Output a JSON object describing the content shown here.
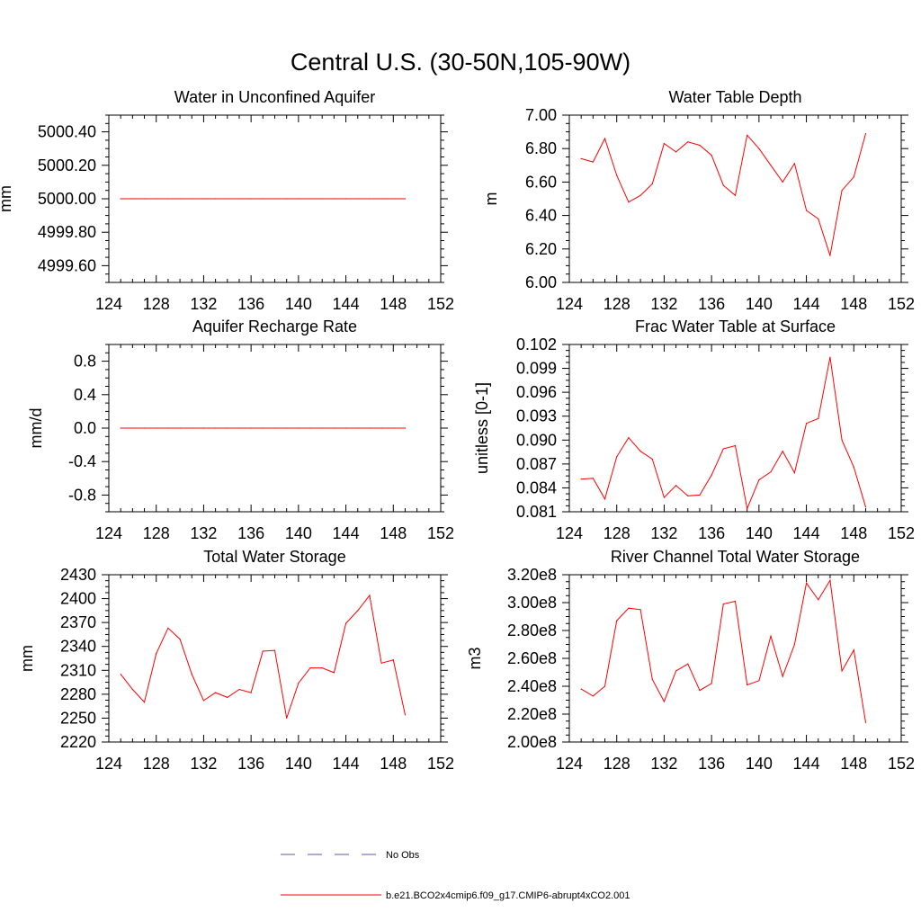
{
  "title": "Central U.S. (30-50N,105-90W)",
  "legend": {
    "entries": [
      {
        "label": "No Obs",
        "color": "#5a5aa8",
        "style": "dashed"
      },
      {
        "label": "b.e21.BCO2x4cmip6.f09_g17.CMIP6-abrupt4xCO2.001",
        "color": "#ff0000",
        "style": "solid"
      }
    ]
  },
  "chart_data": [
    {
      "type": "line",
      "title": "Water in Unconfined Aquifer",
      "xlabel": "",
      "ylabel": "mm",
      "xlim": [
        124,
        152
      ],
      "ylim": [
        4999.5,
        5000.5
      ],
      "xticks": [
        124,
        128,
        132,
        136,
        140,
        144,
        148,
        152
      ],
      "xtick_labels": [
        "124",
        "128",
        "132",
        "136",
        "140",
        "144",
        "148",
        "152"
      ],
      "yticks": [
        4999.6,
        4999.8,
        5000.0,
        5000.2,
        5000.4
      ],
      "ytick_labels": [
        "4999.60",
        "4999.80",
        "5000.00",
        "5000.20",
        "5000.40"
      ],
      "x": [
        125,
        126,
        127,
        128,
        129,
        130,
        131,
        132,
        133,
        134,
        135,
        136,
        137,
        138,
        139,
        140,
        141,
        142,
        143,
        144,
        145,
        146,
        147,
        148,
        149
      ],
      "series": [
        {
          "name": "b.e21.BCO2x4cmip6.f09_g17.CMIP6-abrupt4xCO2.001",
          "color": "#ff0000",
          "values": [
            5000,
            5000,
            5000,
            5000,
            5000,
            5000,
            5000,
            5000,
            5000,
            5000,
            5000,
            5000,
            5000,
            5000,
            5000,
            5000,
            5000,
            5000,
            5000,
            5000,
            5000,
            5000,
            5000,
            5000,
            5000
          ]
        }
      ]
    },
    {
      "type": "line",
      "title": "Water Table Depth",
      "xlabel": "",
      "ylabel": "m",
      "xlim": [
        124,
        152
      ],
      "ylim": [
        6.0,
        7.0
      ],
      "xticks": [
        124,
        128,
        132,
        136,
        140,
        144,
        148,
        152
      ],
      "xtick_labels": [
        "124",
        "128",
        "132",
        "136",
        "140",
        "144",
        "148",
        "152"
      ],
      "yticks": [
        6.0,
        6.2,
        6.4,
        6.6,
        6.8,
        7.0
      ],
      "ytick_labels": [
        "6.00",
        "6.20",
        "6.40",
        "6.60",
        "6.80",
        "7.00"
      ],
      "x": [
        125,
        126,
        127,
        128,
        129,
        130,
        131,
        132,
        133,
        134,
        135,
        136,
        137,
        138,
        139,
        140,
        141,
        142,
        143,
        144,
        145,
        146,
        147,
        148,
        149
      ],
      "series": [
        {
          "name": "b.e21.BCO2x4cmip6.f09_g17.CMIP6-abrupt4xCO2.001",
          "color": "#ff0000",
          "values": [
            6.74,
            6.72,
            6.86,
            6.64,
            6.48,
            6.52,
            6.59,
            6.83,
            6.78,
            6.84,
            6.82,
            6.76,
            6.58,
            6.52,
            6.88,
            6.8,
            6.7,
            6.6,
            6.71,
            6.43,
            6.38,
            6.16,
            6.55,
            6.63,
            6.89
          ]
        }
      ]
    },
    {
      "type": "line",
      "title": "Aquifer Recharge Rate",
      "xlabel": "",
      "ylabel": "mm/d",
      "xlim": [
        124,
        152
      ],
      "ylim": [
        -1.0,
        1.0
      ],
      "xticks": [
        124,
        128,
        132,
        136,
        140,
        144,
        148,
        152
      ],
      "xtick_labels": [
        "124",
        "128",
        "132",
        "136",
        "140",
        "144",
        "148",
        "152"
      ],
      "yticks": [
        -0.8,
        -0.4,
        0.0,
        0.4,
        0.8
      ],
      "ytick_labels": [
        "-0.8",
        "-0.4",
        "0.0",
        "0.4",
        "0.8"
      ],
      "x": [
        125,
        126,
        127,
        128,
        129,
        130,
        131,
        132,
        133,
        134,
        135,
        136,
        137,
        138,
        139,
        140,
        141,
        142,
        143,
        144,
        145,
        146,
        147,
        148,
        149
      ],
      "series": [
        {
          "name": "b.e21.BCO2x4cmip6.f09_g17.CMIP6-abrupt4xCO2.001",
          "color": "#ff0000",
          "values": [
            0,
            0,
            0,
            0,
            0,
            0,
            0,
            0,
            0,
            0,
            0,
            0,
            0,
            0,
            0,
            0,
            0,
            0,
            0,
            0,
            0,
            0,
            0,
            0,
            0
          ]
        }
      ]
    },
    {
      "type": "line",
      "title": "Frac Water Table at Surface",
      "xlabel": "",
      "ylabel": "unitless [0-1]",
      "xlim": [
        124,
        152
      ],
      "ylim": [
        0.081,
        0.102
      ],
      "xticks": [
        124,
        128,
        132,
        136,
        140,
        144,
        148,
        152
      ],
      "xtick_labels": [
        "124",
        "128",
        "132",
        "136",
        "140",
        "144",
        "148",
        "152"
      ],
      "yticks": [
        0.081,
        0.084,
        0.087,
        0.09,
        0.093,
        0.096,
        0.099,
        0.102
      ],
      "ytick_labels": [
        "0.081",
        "0.084",
        "0.087",
        "0.090",
        "0.093",
        "0.096",
        "0.099",
        "0.102"
      ],
      "x": [
        125,
        126,
        127,
        128,
        129,
        130,
        131,
        132,
        133,
        134,
        135,
        136,
        137,
        138,
        139,
        140,
        141,
        142,
        143,
        144,
        145,
        146,
        147,
        148,
        149
      ],
      "series": [
        {
          "name": "b.e21.BCO2x4cmip6.f09_g17.CMIP6-abrupt4xCO2.001",
          "color": "#ff0000",
          "values": [
            0.0851,
            0.0852,
            0.0826,
            0.0879,
            0.0903,
            0.0886,
            0.0876,
            0.0828,
            0.0843,
            0.083,
            0.0831,
            0.0856,
            0.0889,
            0.0893,
            0.0814,
            0.085,
            0.086,
            0.0886,
            0.0859,
            0.0921,
            0.0927,
            0.1004,
            0.09,
            0.0866,
            0.0816
          ]
        }
      ]
    },
    {
      "type": "line",
      "title": "Total Water Storage",
      "xlabel": "",
      "ylabel": "mm",
      "xlim": [
        124,
        152
      ],
      "ylim": [
        2220,
        2430
      ],
      "xticks": [
        124,
        128,
        132,
        136,
        140,
        144,
        148,
        152
      ],
      "xtick_labels": [
        "124",
        "128",
        "132",
        "136",
        "140",
        "144",
        "148",
        "152"
      ],
      "yticks": [
        2220,
        2250,
        2280,
        2310,
        2340,
        2370,
        2400,
        2430
      ],
      "ytick_labels": [
        "2220",
        "2250",
        "2280",
        "2310",
        "2340",
        "2370",
        "2400",
        "2430"
      ],
      "x": [
        125,
        126,
        127,
        128,
        129,
        130,
        131,
        132,
        133,
        134,
        135,
        136,
        137,
        138,
        139,
        140,
        141,
        142,
        143,
        144,
        145,
        146,
        147,
        148,
        149
      ],
      "series": [
        {
          "name": "b.e21.BCO2x4cmip6.f09_g17.CMIP6-abrupt4xCO2.001",
          "color": "#ff0000",
          "values": [
            2305,
            2286,
            2270,
            2331,
            2363,
            2349,
            2305,
            2272,
            2282,
            2276,
            2286,
            2282,
            2334,
            2335,
            2250,
            2294,
            2313,
            2313,
            2307,
            2369,
            2385,
            2404,
            2319,
            2323,
            2254
          ]
        }
      ]
    },
    {
      "type": "line",
      "title": "River Channel Total Water Storage",
      "xlabel": "",
      "ylabel": "m3",
      "xlim": [
        124,
        152
      ],
      "ylim": [
        200000000,
        320000000
      ],
      "xticks": [
        124,
        128,
        132,
        136,
        140,
        144,
        148,
        152
      ],
      "xtick_labels": [
        "124",
        "128",
        "132",
        "136",
        "140",
        "144",
        "148",
        "152"
      ],
      "yticks": [
        200000000,
        220000000,
        240000000,
        260000000,
        280000000,
        300000000,
        320000000
      ],
      "ytick_labels": [
        "2.00e8",
        "2.20e8",
        "2.40e8",
        "2.60e8",
        "2.80e8",
        "3.00e8",
        "3.20e8"
      ],
      "x": [
        125,
        126,
        127,
        128,
        129,
        130,
        131,
        132,
        133,
        134,
        135,
        136,
        137,
        138,
        139,
        140,
        141,
        142,
        143,
        144,
        145,
        146,
        147,
        148,
        149
      ],
      "series": [
        {
          "name": "b.e21.BCO2x4cmip6.f09_g17.CMIP6-abrupt4xCO2.001",
          "color": "#ff0000",
          "values": [
            238000000,
            233000000,
            240000000,
            287000000,
            296000000,
            295000000,
            245000000,
            229000000,
            251000000,
            256000000,
            237000000,
            242000000,
            299000000,
            301000000,
            241000000,
            244000000,
            276000000,
            247000000,
            270000000,
            314000000,
            302000000,
            316000000,
            251000000,
            266000000,
            214000000
          ]
        }
      ]
    }
  ]
}
